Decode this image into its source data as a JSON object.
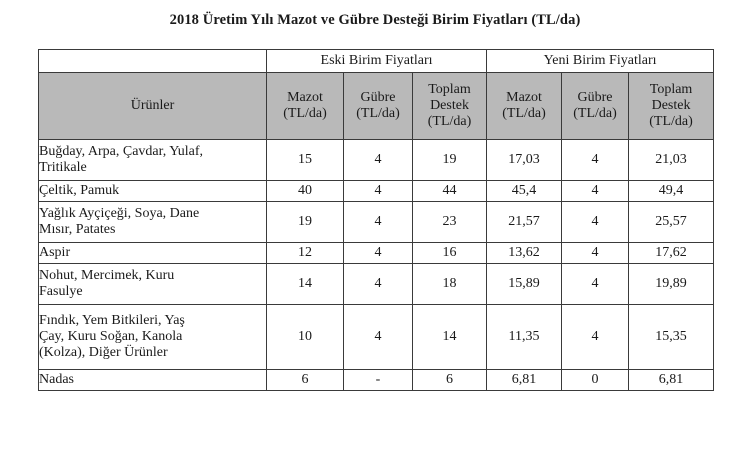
{
  "title": "2018 Üretim Yılı Mazot ve Gübre Desteği Birim Fiyatları (TL/da)",
  "groups": {
    "old": "Eski Birim Fiyatları",
    "new": "Yeni Birim Fiyatları"
  },
  "columns": {
    "product": "Ürünler",
    "old_fuel": [
      "Mazot",
      "(TL/da)"
    ],
    "old_fert": [
      "Gübre",
      "(TL/da)"
    ],
    "old_total": [
      "Toplam",
      "Destek",
      "(TL/da)"
    ],
    "new_fuel": [
      "Mazot",
      "(TL/da)"
    ],
    "new_fert": [
      "Gübre",
      "(TL/da)"
    ],
    "new_total": [
      "Toplam",
      "Destek",
      "(TL/da)"
    ]
  },
  "rows": [
    {
      "product": [
        "Buğday, Arpa, Çavdar, Yulaf,",
        "Tritikale"
      ],
      "old_fuel": "15",
      "old_fert": "4",
      "old_total": "19",
      "new_fuel": "17,03",
      "new_fert": "4",
      "new_total": "21,03"
    },
    {
      "product": [
        "Çeltik, Pamuk"
      ],
      "old_fuel": "40",
      "old_fert": "4",
      "old_total": "44",
      "new_fuel": "45,4",
      "new_fert": "4",
      "new_total": "49,4"
    },
    {
      "product": [
        "Yağlık Ayçiçeği, Soya, Dane",
        "Mısır, Patates"
      ],
      "old_fuel": "19",
      "old_fert": "4",
      "old_total": "23",
      "new_fuel": "21,57",
      "new_fert": "4",
      "new_total": "25,57"
    },
    {
      "product": [
        "Aspir"
      ],
      "old_fuel": "12",
      "old_fert": "4",
      "old_total": "16",
      "new_fuel": "13,62",
      "new_fert": "4",
      "new_total": "17,62"
    },
    {
      "product": [
        "Nohut, Mercimek, Kuru",
        "Fasulye"
      ],
      "old_fuel": "14",
      "old_fert": "4",
      "old_total": "18",
      "new_fuel": "15,89",
      "new_fert": "4",
      "new_total": "19,89"
    },
    {
      "product": [
        "Fındık, Yem Bitkileri, Yaş",
        "Çay, Kuru Soğan, Kanola",
        "(Kolza), Diğer Ürünler"
      ],
      "old_fuel": "10",
      "old_fert": "4",
      "old_total": "14",
      "new_fuel": "11,35",
      "new_fert": "4",
      "new_total": "15,35"
    },
    {
      "product": [
        "Nadas"
      ],
      "old_fuel": "6",
      "old_fert": "-",
      "old_total": "6",
      "new_fuel": "6,81",
      "new_fert": "0",
      "new_total": "6,81"
    }
  ]
}
